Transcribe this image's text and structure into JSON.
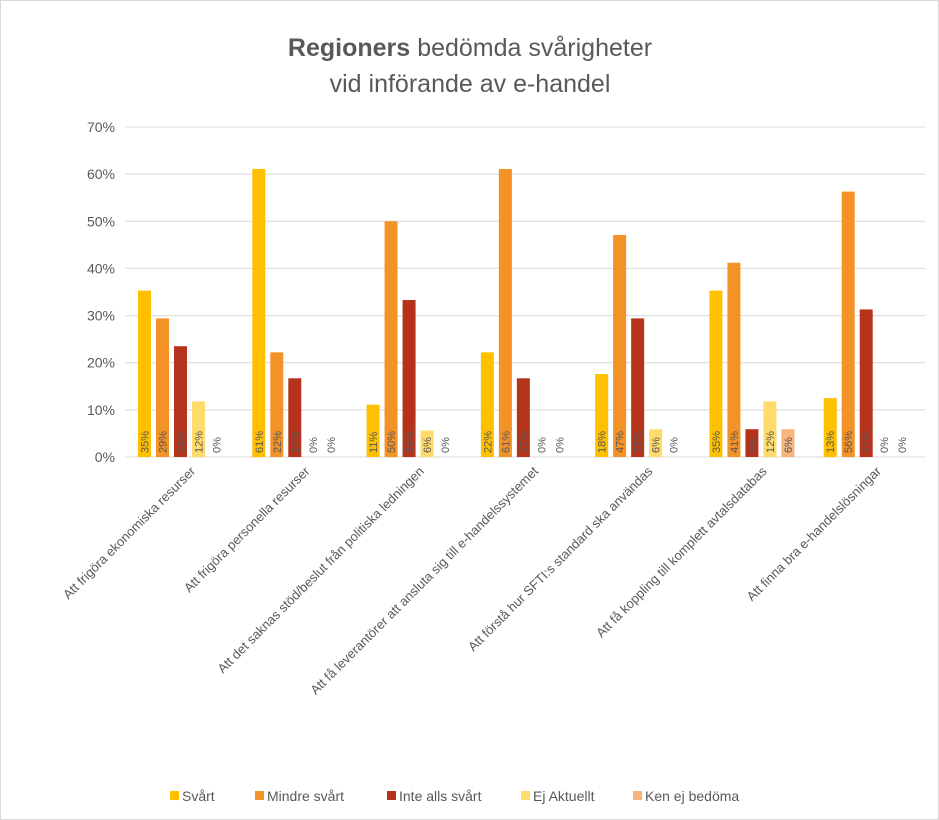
{
  "chart_data": {
    "type": "bar",
    "title_bold": "Regioners",
    "title": [
      "bedömda svårigheter",
      "vid införande av e-handel"
    ],
    "categories": [
      "Att frigöra ekonomiska resurser",
      "Att frigöra personella resurser",
      "Att det saknas stöd/beslut från politiska ledningen",
      "Att få leverantörer att ansluta sig till e-handelssystemet",
      "Att förstå hur SFTI:s standard ska användas",
      "Att få koppling till komplett avtalsdatabas",
      "Att finna bra e-handelslösningar"
    ],
    "series": [
      {
        "name": "Svårt",
        "color": "#ffc000",
        "values": [
          35.3,
          61.1,
          11.1,
          22.2,
          17.6,
          35.3,
          12.5
        ],
        "value_labels": [
          "35%",
          "61%",
          "11%",
          "22%",
          "18%",
          "35%",
          "13%"
        ]
      },
      {
        "name": "Mindre svårt",
        "color": "#f39226",
        "values": [
          29.4,
          22.2,
          50,
          61.1,
          47.1,
          41.2,
          56.3
        ],
        "value_labels": [
          "29%",
          "22%",
          "50%",
          "61%",
          "47%",
          "41%",
          "56%"
        ]
      },
      {
        "name": "Inte alls svårt",
        "color": "#b5331b",
        "values": [
          23.5,
          16.7,
          33.3,
          16.7,
          29.4,
          5.9,
          31.3
        ],
        "value_labels": [
          "24%",
          "17%",
          "33%",
          "17%",
          "29%",
          "6%",
          "31%"
        ]
      },
      {
        "name": "Ej Aktuellt",
        "color": "#ffdb6b",
        "values": [
          11.8,
          0,
          5.6,
          0,
          5.9,
          11.8,
          0
        ],
        "value_labels": [
          "12%",
          "0%",
          "6%",
          "0%",
          "6%",
          "12%",
          "0%"
        ]
      },
      {
        "name": "Ken ej bedöma",
        "color": "#f5b57c",
        "values": [
          0,
          0,
          0,
          0,
          0,
          5.9,
          0
        ],
        "value_labels": [
          "0%",
          "0%",
          "0%",
          "0%",
          "0%",
          "6%",
          "0%"
        ]
      }
    ],
    "ylim": [
      0,
      70
    ],
    "yticks": [
      {
        "value": 0,
        "label": "0%"
      },
      {
        "value": 10,
        "label": "10%"
      },
      {
        "value": 20,
        "label": "20%"
      },
      {
        "value": 30,
        "label": "30%"
      },
      {
        "value": 40,
        "label": "40%"
      },
      {
        "value": 50,
        "label": "50%"
      },
      {
        "value": 60,
        "label": "60%"
      },
      {
        "value": 70,
        "label": "70%"
      }
    ],
    "grid": true,
    "legend": "bottom"
  }
}
